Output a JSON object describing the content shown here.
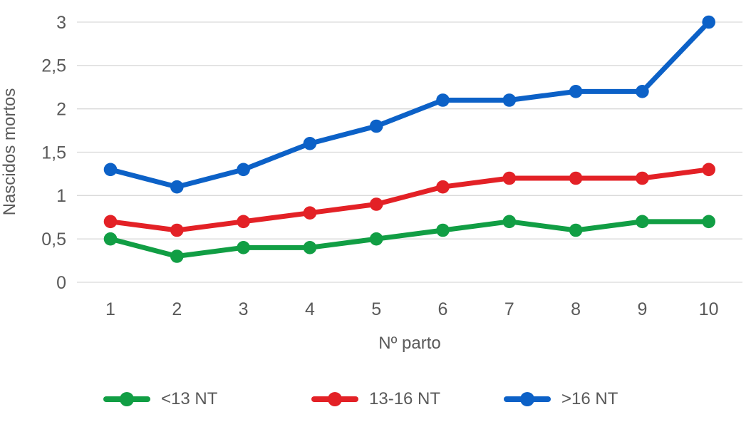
{
  "colors": {
    "grid": "#D9D9D9",
    "text": "#5A5A5A",
    "background": "#FFFFFF"
  },
  "chart_data": {
    "type": "line",
    "title": "",
    "xlabel": "Nº parto",
    "ylabel": "Nascidos mortos",
    "x": [
      1,
      2,
      3,
      4,
      5,
      6,
      7,
      8,
      9,
      10
    ],
    "xtick_labels": [
      "1",
      "2",
      "3",
      "4",
      "5",
      "6",
      "7",
      "8",
      "9",
      "10"
    ],
    "ylim": [
      0,
      3
    ],
    "ytick_values": [
      0,
      0.5,
      1,
      1.5,
      2,
      2.5,
      3
    ],
    "ytick_labels": [
      "0",
      "0,5",
      "1",
      "1,5",
      "2",
      "2,5",
      "3"
    ],
    "grid": true,
    "legend_position": "bottom",
    "marker": "circle",
    "series": [
      {
        "name": "<13 NT",
        "color": "#119E44",
        "values": [
          0.5,
          0.3,
          0.4,
          0.4,
          0.5,
          0.6,
          0.7,
          0.6,
          0.7,
          0.7
        ]
      },
      {
        "name": "13-16 NT",
        "color": "#E32126",
        "values": [
          0.7,
          0.6,
          0.7,
          0.8,
          0.9,
          1.1,
          1.2,
          1.2,
          1.2,
          1.3
        ]
      },
      {
        "name": ">16 NT",
        "color": "#0C61C7",
        "values": [
          1.3,
          1.1,
          1.3,
          1.6,
          1.8,
          2.1,
          2.1,
          2.2,
          2.2,
          3.0
        ]
      }
    ]
  }
}
